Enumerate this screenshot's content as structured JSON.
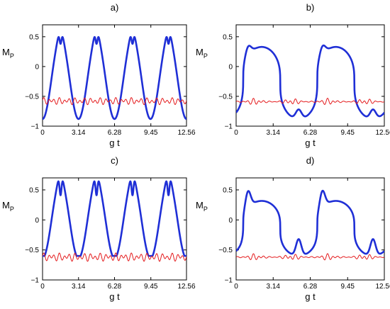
{
  "chart_data": [
    {
      "type": "line",
      "title": "a)",
      "xlabel": "g t",
      "ylabel": "M",
      "ylabel_sub": "P",
      "xlim": [
        0,
        12.56
      ],
      "ylim": [
        -1,
        0.7
      ],
      "xticks": [
        0,
        3.14,
        6.28,
        9.45,
        12.56
      ],
      "xtick_labels": [
        "0",
        "3.14",
        "6.28",
        "9.45",
        "12.56"
      ],
      "yticks": [
        -1,
        -0.5,
        0,
        0.5
      ],
      "ytick_labels": [
        "−1",
        "−0.5",
        "0",
        "0.5"
      ],
      "grid": false,
      "series": [
        {
          "color": "#1f2fd6",
          "width": 2.6,
          "model": "osc",
          "A": 0.68,
          "c": -0.2,
          "period": 3.14,
          "phase": 1.5708,
          "k": 0.01,
          "k2": 9.42,
          "depth": 0.22
        },
        {
          "color": "#e41a1c",
          "width": 1.0,
          "model": "noise",
          "c": -0.58,
          "amp": 0.06,
          "ws": [
            14.0,
            9.0
          ],
          "env": "full"
        }
      ]
    },
    {
      "type": "line",
      "title": "b)",
      "xlabel": "g t",
      "ylabel": "M",
      "ylabel_sub": "P",
      "xlim": [
        0,
        12.56
      ],
      "ylim": [
        -1,
        0.7
      ],
      "xticks": [
        0,
        3.14,
        6.28,
        9.45,
        12.56
      ],
      "xtick_labels": [
        "0",
        "3.14",
        "6.28",
        "9.45",
        "12.56"
      ],
      "yticks": [
        -1,
        -0.5,
        0,
        0.5
      ],
      "ytick_labels": [
        "−1",
        "−0.5",
        "0",
        "0.5"
      ],
      "grid": false,
      "series": [
        {
          "color": "#1f2fd6",
          "width": 2.6,
          "model": "flat",
          "c": -0.26,
          "A": 0.62,
          "p": 3.0,
          "bump": 0.16,
          "bumpw": 0.55,
          "bumps": [
            1.0,
            5.3,
            7.3,
            11.6
          ]
        },
        {
          "color": "#e41a1c",
          "width": 1.0,
          "model": "noise",
          "c": -0.59,
          "amp": 0.06,
          "ws": [
            14.0,
            9.0
          ],
          "env": "bursts"
        }
      ]
    },
    {
      "type": "line",
      "title": "c)",
      "xlabel": "g t",
      "ylabel": "M",
      "ylabel_sub": "P",
      "xlim": [
        0,
        12.56
      ],
      "ylim": [
        -1,
        0.7
      ],
      "xticks": [
        0,
        3.14,
        6.28,
        9.45,
        12.56
      ],
      "xtick_labels": [
        "0",
        "3.14",
        "6.28",
        "9.45",
        "12.56"
      ],
      "yticks": [
        -1,
        -0.5,
        0,
        0.5
      ],
      "ytick_labels": [
        "−1",
        "−0.5",
        "0",
        "0.5"
      ],
      "grid": false,
      "series": [
        {
          "color": "#1f2fd6",
          "width": 2.6,
          "model": "osc",
          "A": 0.64,
          "c": 0.0,
          "period": 3.14,
          "phase": 1.5708,
          "k": 0.01,
          "k2": 9.42,
          "depth": 0.35,
          "clampmin": -0.6
        },
        {
          "color": "#e41a1c",
          "width": 1.0,
          "model": "noise",
          "c": -0.62,
          "amp": 0.07,
          "ws": [
            14.0,
            9.0
          ],
          "env": "full"
        }
      ]
    },
    {
      "type": "line",
      "title": "d)",
      "xlabel": "g t",
      "ylabel": "M",
      "ylabel_sub": "P",
      "xlim": [
        0,
        12.56
      ],
      "ylim": [
        -1,
        0.7
      ],
      "xticks": [
        0,
        3.14,
        6.28,
        9.45,
        12.56
      ],
      "xtick_labels": [
        "0",
        "3.14",
        "6.28",
        "9.45",
        "12.56"
      ],
      "yticks": [
        -1,
        -0.5,
        0,
        0.5
      ],
      "ytick_labels": [
        "−1",
        "−0.5",
        "0",
        "0.5"
      ],
      "grid": false,
      "series": [
        {
          "color": "#1f2fd6",
          "width": 2.6,
          "model": "flat",
          "c": -0.13,
          "A": 0.47,
          "p": 3.0,
          "bump": 0.28,
          "bumpw": 0.5,
          "bumps": [
            1.0,
            5.3,
            7.3,
            11.6
          ]
        },
        {
          "color": "#e41a1c",
          "width": 1.0,
          "model": "noise",
          "c": -0.62,
          "amp": 0.06,
          "ws": [
            14.0,
            9.0
          ],
          "env": "bursts"
        }
      ]
    }
  ]
}
